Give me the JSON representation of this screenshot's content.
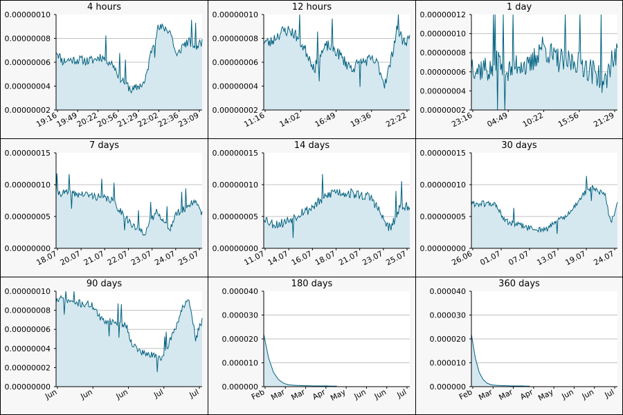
{
  "page": {
    "background": "#ffffff",
    "panel_background": "#f7f7f7",
    "plot_background": "#ffffff",
    "line_color": "#00607f",
    "fill_color": "#d6e8ef",
    "grid_color": "#c0c0c0"
  },
  "chart_data": [
    {
      "type": "area",
      "title": "4 hours",
      "ylim": [
        2e-08,
        1e-07
      ],
      "yticks": [
        "0.00000002",
        "0.00000004",
        "0.00000006",
        "0.00000008",
        "0.00000010"
      ],
      "xticks": [
        "19:16",
        "19:49",
        "20:22",
        "20:56",
        "21:29",
        "22:02",
        "22:36",
        "23:09"
      ],
      "grid": true,
      "noise": 4e-09,
      "seed": 11,
      "series": [
        {
          "values": [
            7e-08,
            6.1e-08,
            6.2e-08,
            6.2e-08,
            6.2e-08,
            6.1e-08,
            6.2e-08,
            6.5e-08,
            6.2e-08,
            5.8e-08,
            4.8e-08,
            4.2e-08,
            3.6e-08,
            4e-08,
            4.3e-08,
            7e-08,
            8.8e-08,
            8.9e-08,
            8.6e-08,
            6.4e-08,
            7.5e-08,
            7.7e-08,
            7.3e-08,
            7.7e-08
          ]
        }
      ]
    },
    {
      "type": "area",
      "title": "12 hours",
      "ylim": [
        2e-08,
        1e-07
      ],
      "yticks": [
        "0.00000002",
        "0.00000004",
        "0.00000006",
        "0.00000008",
        "0.00000010"
      ],
      "xticks": [
        "11:16",
        "14:02",
        "16:49",
        "19:36",
        "22:22"
      ],
      "grid": true,
      "noise": 5e-09,
      "seed": 23,
      "series": [
        {
          "values": [
            7.8e-08,
            7.6e-08,
            8.2e-08,
            8.6e-08,
            8.7e-08,
            8.3e-08,
            7.5e-08,
            6.6e-08,
            5.5e-08,
            6.7e-08,
            7.4e-08,
            7.1e-08,
            6.6e-08,
            5.9e-08,
            5.5e-08,
            5.9e-08,
            6.1e-08,
            6.2e-08,
            5.8e-08,
            4.2e-08,
            6e-08,
            9e-08,
            7.7e-08,
            8e-08
          ]
        }
      ]
    },
    {
      "type": "area",
      "title": "1 day",
      "ylim": [
        2e-08,
        1.2e-07
      ],
      "yticks": [
        "0.00000002",
        "0.00000004",
        "0.00000006",
        "0.00000008",
        "0.00000010",
        "0.00000012"
      ],
      "xticks": [
        "23:16",
        "04:49",
        "10:22",
        "15:56",
        "21:29"
      ],
      "grid": true,
      "noise": 1.4e-08,
      "seed": 37,
      "series": [
        {
          "values": [
            7e-08,
            6.2e-08,
            6.5e-08,
            6e-08,
            7.5e-08,
            6.3e-08,
            6e-08,
            6.8e-08,
            7e-08,
            6.2e-08,
            7.4e-08,
            8.8e-08,
            8.2e-08,
            7.4e-08,
            7.2e-08,
            7e-08,
            7.1e-08,
            7.2e-08,
            6.6e-08,
            6e-08,
            5.8e-08,
            4.5e-08,
            7.2e-08,
            7.8e-08
          ]
        }
      ]
    },
    {
      "type": "area",
      "title": "7 days",
      "ylim": [
        0,
        1.5e-07
      ],
      "yticks": [
        "0.00000000",
        "0.00000005",
        "0.00000010",
        "0.00000015"
      ],
      "xticks": [
        "18.07",
        "20.07",
        "21.07",
        "22.07",
        "23.07",
        "24.07",
        "25.07"
      ],
      "grid": true,
      "noise": 6e-09,
      "seed": 41,
      "series": [
        {
          "values": [
            8.8e-08,
            8.7e-08,
            8.7e-08,
            8.5e-08,
            8.5e-08,
            8.4e-08,
            8.2e-08,
            8e-08,
            7.8e-08,
            7.5e-08,
            6e-08,
            5e-08,
            3.5e-08,
            3e-08,
            2.5e-08,
            4.5e-08,
            6e-08,
            4e-08,
            3.2e-08,
            5.5e-08,
            6e-08,
            7e-08,
            7.5e-08,
            5.5e-08
          ]
        }
      ]
    },
    {
      "type": "area",
      "title": "14 days",
      "ylim": [
        0,
        1.5e-07
      ],
      "yticks": [
        "0.00000000",
        "0.00000005",
        "0.00000010",
        "0.00000015"
      ],
      "xticks": [
        "11.07",
        "14.07",
        "16.07",
        "18.07",
        "21.07",
        "23.07",
        "25.07"
      ],
      "grid": true,
      "noise": 8e-09,
      "seed": 53,
      "series": [
        {
          "values": [
            5e-08,
            4e-08,
            3.8e-08,
            4e-08,
            4.5e-08,
            5e-08,
            5.8e-08,
            6e-08,
            6.8e-08,
            7.5e-08,
            8.2e-08,
            9e-08,
            8.8e-08,
            8.7e-08,
            8.6e-08,
            8.4e-08,
            8.2e-08,
            7.9e-08,
            6.2e-08,
            4.2e-08,
            3e-08,
            5.5e-08,
            7e-08,
            6e-08
          ]
        }
      ]
    },
    {
      "type": "area",
      "title": "30 days",
      "ylim": [
        0,
        1.5e-07
      ],
      "yticks": [
        "0.00000000",
        "0.00000005",
        "0.00000010",
        "0.00000015"
      ],
      "xticks": [
        "26.06",
        "01.07",
        "07.07",
        "13.07",
        "19.07",
        "24.07"
      ],
      "grid": true,
      "noise": 5e-09,
      "seed": 61,
      "series": [
        {
          "values": [
            7e-08,
            7e-08,
            7e-08,
            7e-08,
            6.8e-08,
            4.5e-08,
            4e-08,
            3.8e-08,
            3.5e-08,
            3.2e-08,
            3e-08,
            3e-08,
            3e-08,
            4e-08,
            4.5e-08,
            5e-08,
            6.2e-08,
            7.8e-08,
            8.8e-08,
            9.5e-08,
            8.8e-08,
            8.5e-08,
            4e-08,
            7e-08
          ]
        }
      ]
    },
    {
      "type": "area",
      "title": "90 days",
      "ylim": [
        0,
        1e-07
      ],
      "yticks": [
        "0.00000000",
        "0.00000002",
        "0.00000004",
        "0.00000006",
        "0.00000008",
        "0.00000010"
      ],
      "xticks": [
        "Jun",
        "Jun",
        "Jun",
        "Jul",
        "Jul"
      ],
      "grid": true,
      "noise": 4e-09,
      "seed": 71,
      "series": [
        {
          "values": [
            9e-08,
            9.2e-08,
            9e-08,
            8.8e-08,
            8.7e-08,
            8.6e-08,
            8.4e-08,
            7e-08,
            6.9e-08,
            6.8e-08,
            6.7e-08,
            6.5e-08,
            4.5e-08,
            3.8e-08,
            3.4e-08,
            3.3e-08,
            3.1e-08,
            3.1e-08,
            5e-08,
            6.5e-08,
            8.5e-08,
            8.8e-08,
            5e-08,
            7e-08
          ]
        }
      ]
    },
    {
      "type": "area",
      "title": "180 days",
      "ylim": [
        0,
        4e-05
      ],
      "yticks": [
        "0.000000",
        "0.000010",
        "0.000020",
        "0.000030",
        "0.000040"
      ],
      "xticks": [
        "Feb",
        "Mar",
        "Mar",
        "Apr",
        "May",
        "Jun",
        "Jun",
        "Jul"
      ],
      "grid": true,
      "noise": 0.0,
      "seed": 83,
      "series": [
        {
          "values": [
            2.2e-05,
            1.2e-05,
            6e-06,
            3e-06,
            1.5e-06,
            8e-07,
            6e-07,
            5e-07,
            4e-07,
            4e-07,
            3e-07,
            3e-07,
            3e-07,
            3e-07,
            2e-07,
            2e-07
          ]
        }
      ]
    },
    {
      "type": "area",
      "title": "360 days",
      "ylim": [
        0,
        4e-05
      ],
      "yticks": [
        "0.000000",
        "0.000010",
        "0.000020",
        "0.000030",
        "0.000040"
      ],
      "xticks": [
        "Feb",
        "Mar",
        "Mar",
        "Apr",
        "May",
        "Jun",
        "Jun",
        "Jul"
      ],
      "grid": true,
      "noise": 0.0,
      "seed": 97,
      "series": [
        {
          "values": [
            2.2e-05,
            1.2e-05,
            6e-06,
            3e-06,
            1.5e-06,
            8e-07,
            6e-07,
            5e-07,
            4e-07,
            4e-07,
            3e-07,
            3e-07,
            3e-07,
            3e-07,
            2e-07,
            2e-07
          ]
        }
      ]
    }
  ]
}
